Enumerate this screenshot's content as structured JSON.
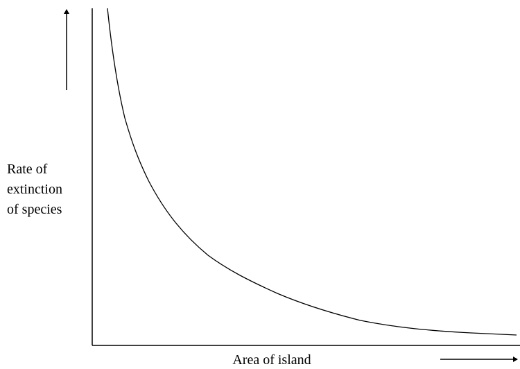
{
  "y_label": {
    "lines": [
      "Rate of",
      "extinction",
      "of species"
    ]
  },
  "x_label": "Area of island"
}
